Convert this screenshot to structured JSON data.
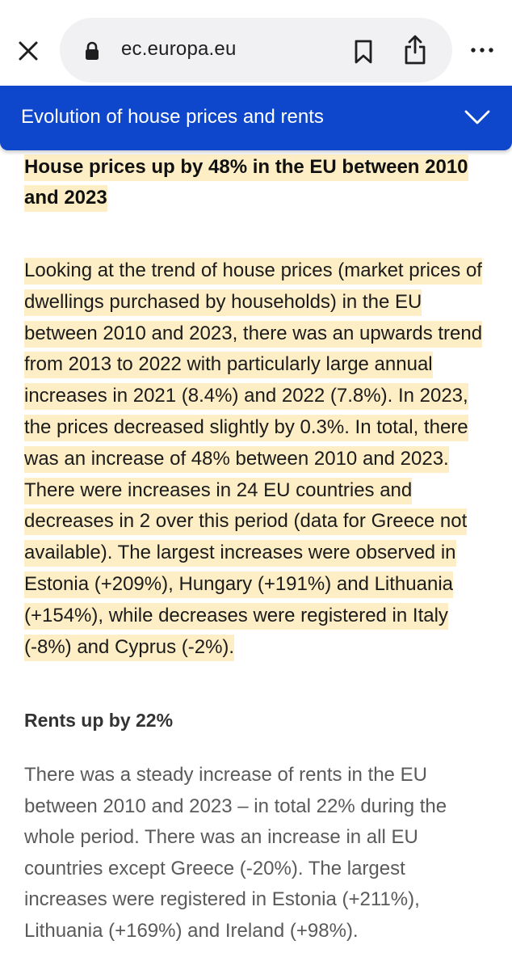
{
  "browser": {
    "url": "ec.europa.eu",
    "icons": {
      "close": "close-icon",
      "lock": "lock-icon",
      "bookmark": "bookmark-icon",
      "share": "share-icon",
      "more": "more-icon"
    }
  },
  "toc": {
    "title": "Evolution of house prices and rents",
    "toggle_icon": "chevron-down-icon",
    "color": "#0e47cb"
  },
  "article": {
    "section1": {
      "heading": "House prices up by 48% in the EU between 2010 and 2023",
      "body": "Looking at the trend of house prices (market prices of dwellings purchased by households) in the EU between 2010 and 2023, there was an upwards trend from 2013 to 2022 with particularly large annual increases in 2021 (8.4%) and 2022 (7.8%). In 2023, the prices decreased slightly by 0.3%. In total, there was an increase of 48% between 2010 and 2023. There were increases in 24 EU countries and decreases in 2 over this period (data for Greece not available). The largest increases were observed in Estonia (+209%), Hungary (+191%) and Lithuania (+154%), while decreases were registered in Italy (-8%) and Cyprus (-2%).",
      "highlight_color": "#fdeec6"
    },
    "section2": {
      "heading": "Rents up by 22%",
      "body": "There was a steady increase of rents in the EU between 2010 and 2023 – in total 22% during the whole period. There was an increase in all EU countries except Greece (-20%). The largest increases were registered in Estonia (+211%), Lithuania (+169%) and Ireland (+98%)."
    }
  }
}
